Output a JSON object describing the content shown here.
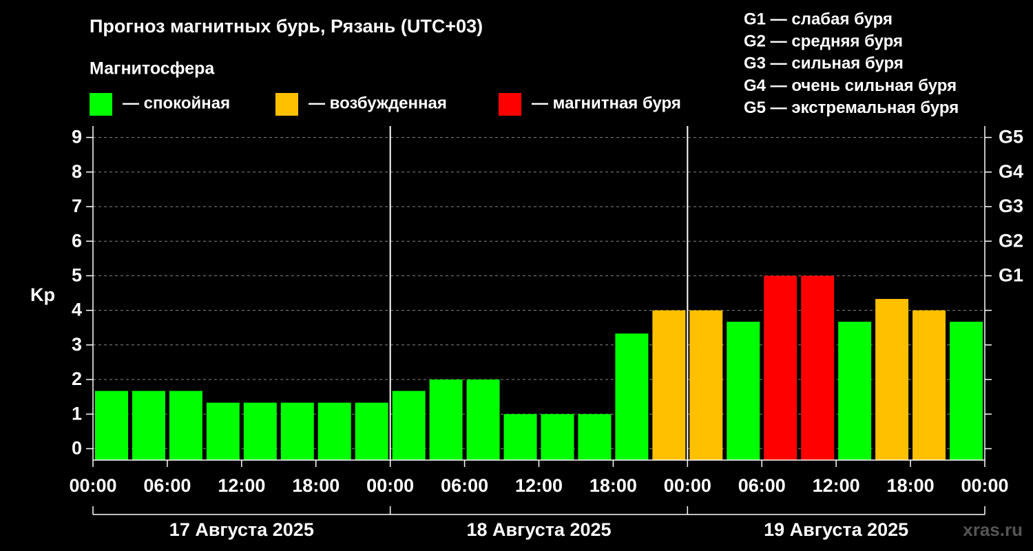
{
  "chart_data": {
    "type": "bar",
    "title": "Прогноз магнитных бурь, Рязань (UTC+03)",
    "legend_title": "Магнитосфера",
    "legend": [
      {
        "label": "— спокойная",
        "color": "#00ff00"
      },
      {
        "label": "— возбужденная",
        "color": "#ffc000"
      },
      {
        "label": "— магнитная буря",
        "color": "#ff0000"
      }
    ],
    "storm_levels": [
      "G1 — слабая буря",
      "G2 — средняя буря",
      "G3 — сильная буря",
      "G4 — очень сильная буря",
      "G5 — экстремальная буря"
    ],
    "y_label": "Kp",
    "x": [
      1.5,
      4.5,
      7.5,
      10.5,
      13.5,
      16.5,
      19.5,
      22.5,
      25.5,
      28.5,
      31.5,
      34.5,
      37.5,
      40.5,
      43.5,
      46.5,
      49.5,
      52.5,
      55.5,
      58.5,
      61.5,
      64.5,
      67.5,
      70.5
    ],
    "values": [
      1.67,
      1.67,
      1.67,
      1.33,
      1.33,
      1.33,
      1.33,
      1.33,
      1.67,
      2,
      2,
      1,
      1,
      1,
      3.33,
      4,
      4,
      3.67,
      5,
      5,
      3.67,
      4.33,
      4,
      3.67
    ],
    "colors": [
      "#00ff00",
      "#00ff00",
      "#00ff00",
      "#00ff00",
      "#00ff00",
      "#00ff00",
      "#00ff00",
      "#00ff00",
      "#00ff00",
      "#00ff00",
      "#00ff00",
      "#00ff00",
      "#00ff00",
      "#00ff00",
      "#00ff00",
      "#ffc000",
      "#ffc000",
      "#00ff00",
      "#ff0000",
      "#ff0000",
      "#00ff00",
      "#ffc000",
      "#ffc000",
      "#00ff00"
    ],
    "xlim": [
      0,
      72
    ],
    "xticks": [
      {
        "value": 0,
        "label": "00:00"
      },
      {
        "value": 6,
        "label": "06:00"
      },
      {
        "value": 12,
        "label": "12:00"
      },
      {
        "value": 18,
        "label": "18:00"
      },
      {
        "value": 24,
        "label": "00:00"
      },
      {
        "value": 30,
        "label": "06:00"
      },
      {
        "value": 36,
        "label": "12:00"
      },
      {
        "value": 42,
        "label": "18:00"
      },
      {
        "value": 48,
        "label": "00:00"
      },
      {
        "value": 54,
        "label": "06:00"
      },
      {
        "value": 60,
        "label": "12:00"
      },
      {
        "value": 66,
        "label": "18:00"
      },
      {
        "value": 72,
        "label": "00:00"
      }
    ],
    "days": [
      "17 Августа 2025",
      "18 Августа 2025",
      "19 Августа 2025"
    ],
    "ylim": [
      -0.33,
      9.33
    ],
    "yticks": [
      0,
      1,
      2,
      3,
      4,
      5,
      6,
      7,
      8,
      9
    ],
    "y2ticks": [
      {
        "value": 5,
        "label": "G1"
      },
      {
        "value": 6,
        "label": "G2"
      },
      {
        "value": 7,
        "label": "G3"
      },
      {
        "value": 8,
        "label": "G4"
      },
      {
        "value": 9,
        "label": "G5"
      }
    ],
    "grid": true,
    "watermark": "xras.ru"
  }
}
